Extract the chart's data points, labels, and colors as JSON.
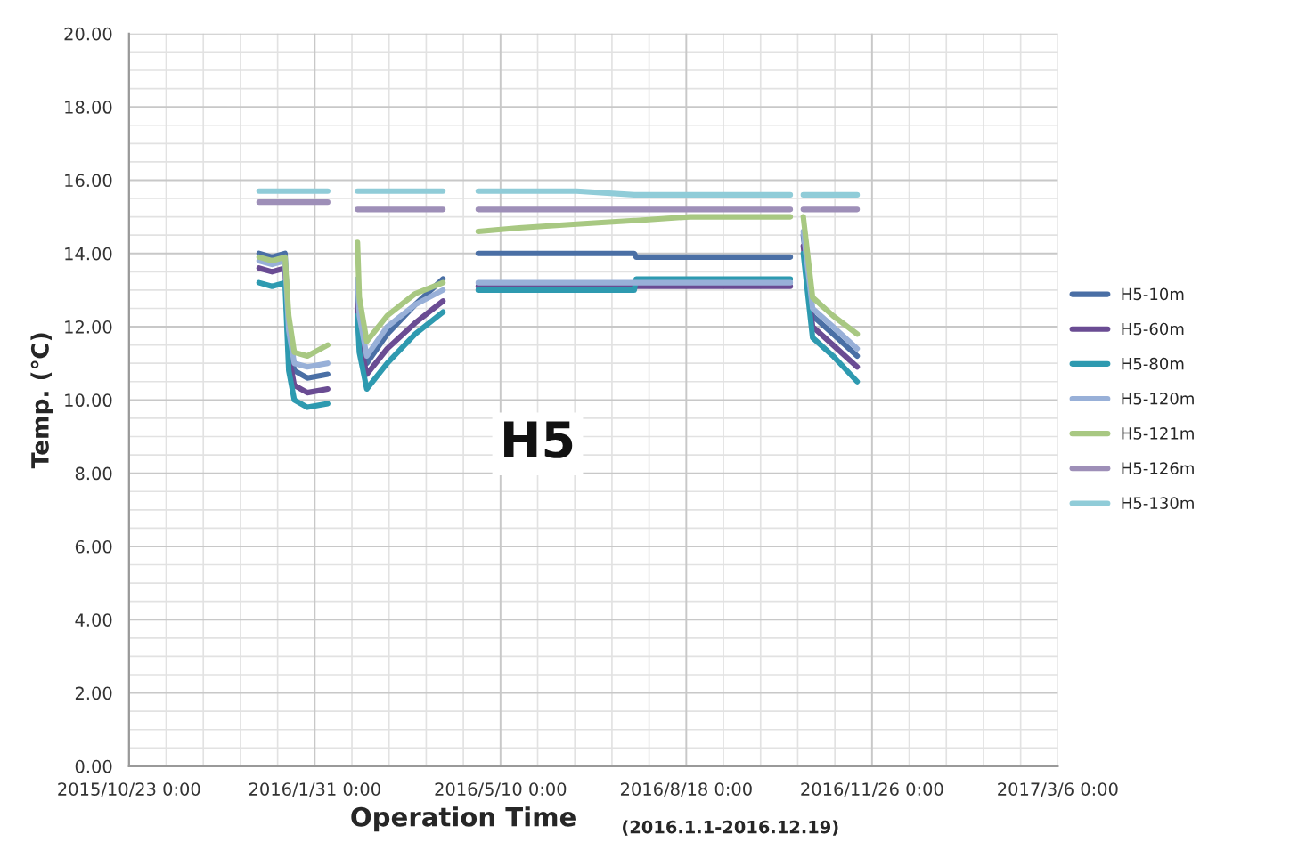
{
  "chart_data": {
    "type": "line",
    "xlabel": "Operation Time",
    "ylabel": "Temp. (℃)",
    "annotations": [
      "H5",
      "(2016.1.1-2016.12.19)"
    ],
    "x": [
      "2016-01-01",
      "2016-01-08",
      "2016-01-15",
      "2016-01-17",
      "2016-01-20",
      "2016-01-27",
      "2016-02-07",
      "2016-02-15",
      "2016-02-23",
      "2016-02-24",
      "2016-02-28",
      "2016-03-10",
      "2016-03-25",
      "2016-04-09",
      "2016-04-18",
      "2016-04-28",
      "2016-05-20",
      "2016-06-20",
      "2016-07-21",
      "2016-07-22",
      "2016-08-20",
      "2016-10-13",
      "2016-10-16",
      "2016-10-20",
      "2016-10-25",
      "2016-11-05",
      "2016-11-18"
    ],
    "series": [
      {
        "name": "H5-10m",
        "color": "#4a6fa5",
        "values": [
          14.0,
          13.9,
          14.0,
          11.6,
          10.8,
          10.6,
          10.7,
          null,
          13.0,
          12.0,
          11.0,
          11.8,
          12.6,
          13.3,
          null,
          14.0,
          14.0,
          14.0,
          14.0,
          13.9,
          13.9,
          13.9,
          null,
          14.5,
          12.3,
          11.8,
          11.2
        ]
      },
      {
        "name": "H5-60m",
        "color": "#6a4c93",
        "values": [
          13.6,
          13.5,
          13.6,
          11.2,
          10.4,
          10.2,
          10.3,
          null,
          12.6,
          11.6,
          10.7,
          11.4,
          12.1,
          12.7,
          null,
          13.1,
          13.1,
          13.1,
          13.1,
          13.1,
          13.1,
          13.1,
          null,
          14.2,
          12.0,
          11.5,
          10.9
        ]
      },
      {
        "name": "H5-80m",
        "color": "#2e9ab0",
        "values": [
          13.2,
          13.1,
          13.2,
          10.8,
          10.0,
          9.8,
          9.9,
          null,
          12.3,
          11.3,
          10.3,
          11.0,
          11.8,
          12.4,
          null,
          13.0,
          13.0,
          13.0,
          13.0,
          13.3,
          13.3,
          13.3,
          null,
          14.0,
          11.7,
          11.2,
          10.5
        ]
      },
      {
        "name": "H5-120m",
        "color": "#98b0d8",
        "values": [
          13.8,
          13.7,
          13.8,
          11.9,
          11.0,
          10.9,
          11.0,
          null,
          13.3,
          12.3,
          11.2,
          12.0,
          12.6,
          13.0,
          null,
          13.2,
          13.2,
          13.2,
          13.2,
          13.2,
          13.2,
          13.2,
          null,
          14.6,
          12.5,
          12.0,
          11.4
        ]
      },
      {
        "name": "H5-121m",
        "color": "#a8c882",
        "values": [
          13.9,
          13.8,
          13.9,
          12.3,
          11.3,
          11.2,
          11.5,
          null,
          14.3,
          12.8,
          11.6,
          12.3,
          12.9,
          13.2,
          null,
          14.6,
          14.7,
          14.8,
          14.9,
          14.9,
          15.0,
          15.0,
          null,
          15.0,
          12.8,
          12.3,
          11.8
        ]
      },
      {
        "name": "H5-126m",
        "color": "#9e8fb8",
        "values": [
          15.4,
          15.4,
          15.4,
          15.4,
          15.4,
          15.4,
          15.4,
          null,
          15.2,
          15.2,
          15.2,
          15.2,
          15.2,
          15.2,
          null,
          15.2,
          15.2,
          15.2,
          15.2,
          15.2,
          15.2,
          15.2,
          null,
          15.2,
          15.2,
          15.2,
          15.2
        ]
      },
      {
        "name": "H5-130m",
        "color": "#90ccd8",
        "values": [
          15.7,
          15.7,
          15.7,
          15.7,
          15.7,
          15.7,
          15.7,
          null,
          15.7,
          15.7,
          15.7,
          15.7,
          15.7,
          15.7,
          null,
          15.7,
          15.7,
          15.7,
          15.6,
          15.6,
          15.6,
          15.6,
          null,
          15.6,
          15.6,
          15.6,
          15.6
        ]
      }
    ],
    "xlim": [
      "2015-10-23",
      "2017-03-06"
    ],
    "xticks": [
      {
        "value": "2015-10-23",
        "label": "2015/10/23 0:00"
      },
      {
        "value": "2016-01-31",
        "label": "2016/1/31 0:00"
      },
      {
        "value": "2016-05-10",
        "label": "2016/5/10 0:00"
      },
      {
        "value": "2016-08-18",
        "label": "2016/8/18 0:00"
      },
      {
        "value": "2016-11-26",
        "label": "2016/11/26 0:00"
      },
      {
        "value": "2017-03-06",
        "label": "2017/3/6 0:00"
      }
    ],
    "ylim": [
      0,
      20
    ],
    "yticks": [
      {
        "value": 0,
        "label": "0.00"
      },
      {
        "value": 2,
        "label": "2.00"
      },
      {
        "value": 4,
        "label": "4.00"
      },
      {
        "value": 6,
        "label": "6.00"
      },
      {
        "value": 8,
        "label": "8.00"
      },
      {
        "value": 10,
        "label": "10.00"
      },
      {
        "value": 12,
        "label": "12.00"
      },
      {
        "value": 14,
        "label": "14.00"
      },
      {
        "value": 16,
        "label": "16.00"
      },
      {
        "value": 18,
        "label": "18.00"
      },
      {
        "value": 20,
        "label": "20.00"
      }
    ],
    "grid": true,
    "legend": "right",
    "marker": "none",
    "line_style": "solid"
  }
}
